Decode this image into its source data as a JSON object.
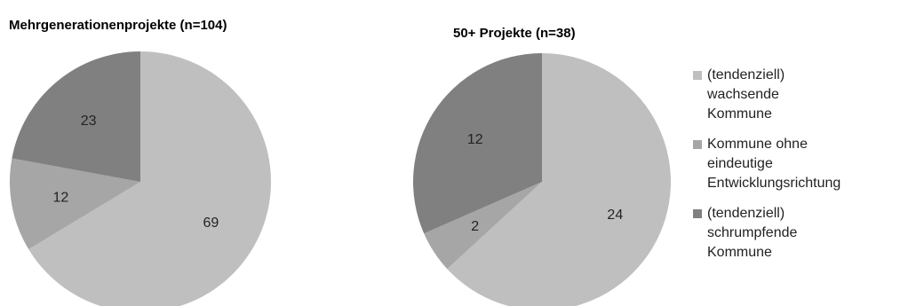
{
  "chart_data": [
    {
      "type": "pie",
      "title": "Mehrgenerationenprojekte (n=104)",
      "categories": [
        "(tendenziell) wachsende Kommune",
        "Kommune ohne eindeutige Entwicklungsrichtung",
        "(tendenziell) schrumpfende Kommune"
      ],
      "values": [
        69,
        12,
        23
      ]
    },
    {
      "type": "pie",
      "title": "50+ Projekte (n=38)",
      "categories": [
        "(tendenziell) wachsende Kommune",
        "Kommune ohne eindeutige Entwicklungsrichtung",
        "(tendenziell) schrumpfende Kommune"
      ],
      "values": [
        24,
        2,
        12
      ]
    }
  ],
  "legend": [
    {
      "label": "(tendenziell)\nwachsende\nKommune",
      "color": "#bfbfbf"
    },
    {
      "label": "Kommune ohne\neindeutige\nEntwicklungsrichtung",
      "color": "#a6a6a6"
    },
    {
      "label": "(tendenziell)\nschrumpfende\nKommune",
      "color": "#808080"
    }
  ],
  "colors": [
    "#bfbfbf",
    "#a6a6a6",
    "#808080"
  ]
}
